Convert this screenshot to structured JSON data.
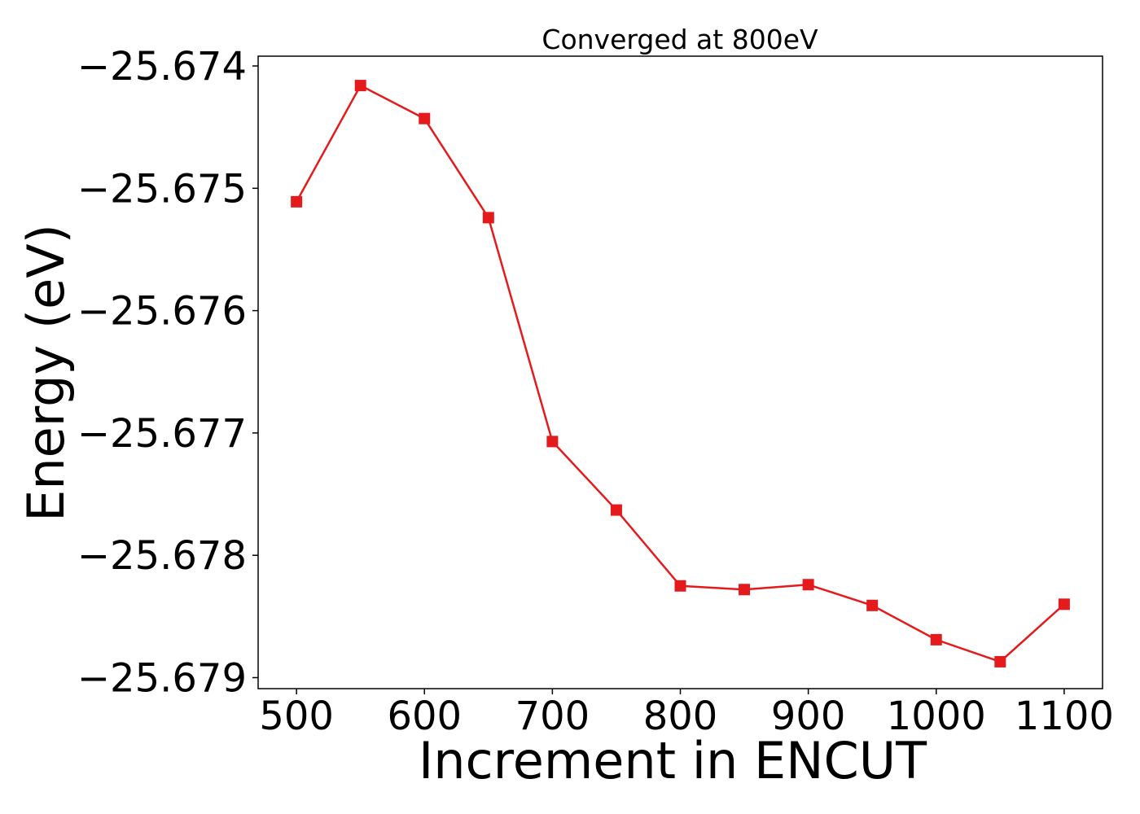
{
  "chart_data": {
    "type": "line",
    "title": "Converged at 800eV",
    "xlabel": "Increment in ENCUT",
    "ylabel": "Energy (eV)",
    "x": [
      500,
      550,
      600,
      650,
      700,
      750,
      800,
      850,
      900,
      950,
      1000,
      1050,
      1100
    ],
    "series": [
      {
        "values": [
          -25.67511,
          -25.67416,
          -25.67443,
          -25.67524,
          -25.67707,
          -25.67763,
          -25.67825,
          -25.67828,
          -25.67824,
          -25.67841,
          -25.67869,
          -25.67887,
          -25.6784
        ],
        "color": "#e41a1c",
        "marker": "square"
      }
    ],
    "xlim": [
      470,
      1130
    ],
    "ylim": [
      -25.67909,
      -25.67392
    ],
    "xticks": [
      500,
      600,
      700,
      800,
      900,
      1000,
      1100
    ],
    "xtick_labels": [
      "500",
      "600",
      "700",
      "800",
      "900",
      "1000",
      "1100"
    ],
    "yticks": [
      -25.674,
      -25.675,
      -25.676,
      -25.677,
      -25.678,
      -25.679
    ],
    "ytick_labels": [
      "−25.674",
      "−25.675",
      "−25.676",
      "−25.677",
      "−25.678",
      "−25.679"
    ],
    "grid": false,
    "legend": false
  }
}
